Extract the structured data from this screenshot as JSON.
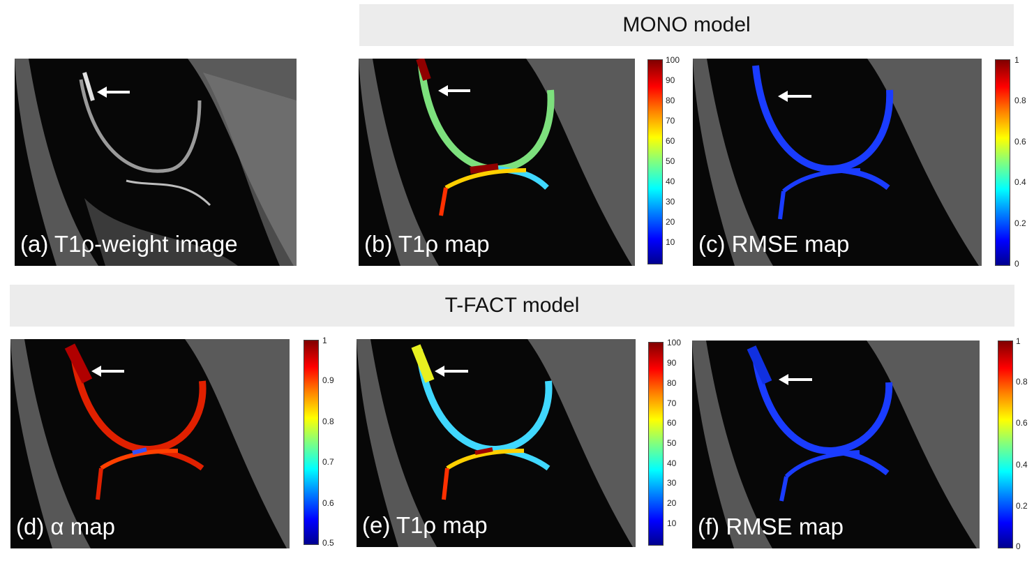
{
  "headers": {
    "mono": "MONO model",
    "tfact": "T-FACT model"
  },
  "panels": {
    "a": "(a) T1ρ-weight image",
    "b": "(b) T1ρ map",
    "c": "(c) RMSE map",
    "d": "(d) α map",
    "e": "(e) T1ρ map",
    "f": "(f) RMSE map"
  },
  "colorbars": {
    "b": [
      "100",
      "90",
      "80",
      "70",
      "60",
      "50",
      "40",
      "30",
      "20",
      "10"
    ],
    "c": [
      "1",
      "0.8",
      "0.6",
      "0.4",
      "0.2",
      "0"
    ],
    "d": [
      "1",
      "0.9",
      "0.8",
      "0.7",
      "0.6",
      "0.5"
    ],
    "e": [
      "100",
      "90",
      "80",
      "70",
      "60",
      "50",
      "40",
      "30",
      "20",
      "10"
    ],
    "f": [
      "1",
      "0.8",
      "0.6",
      "0.4",
      "0.2",
      "0"
    ]
  },
  "colors": {
    "arrow": "#ffffff",
    "banner_bg": "#ececec"
  }
}
